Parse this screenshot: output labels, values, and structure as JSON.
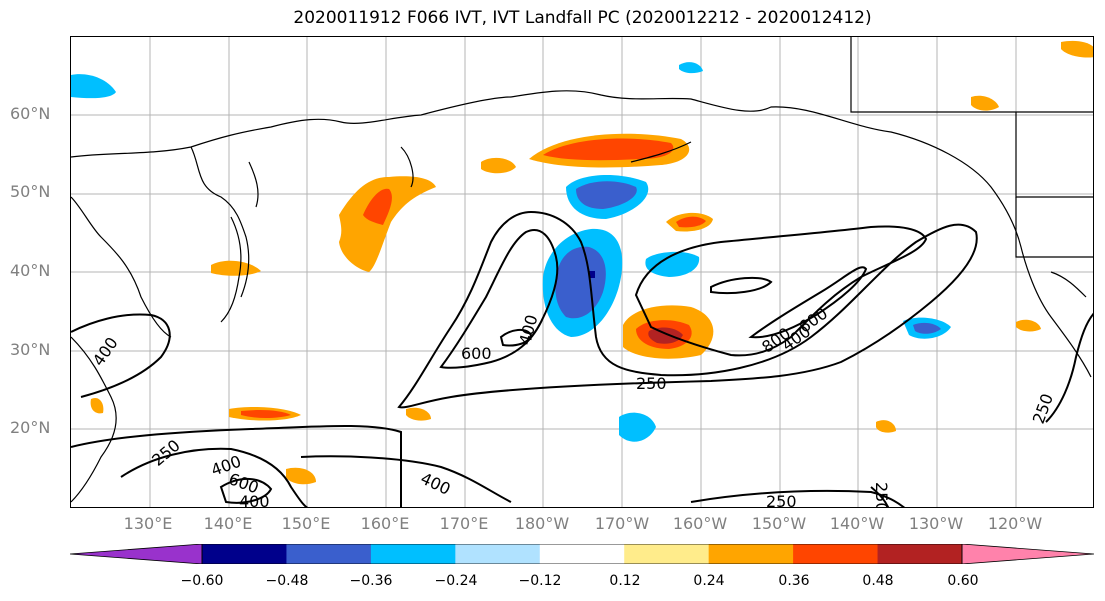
{
  "title": "2020011912 F066 IVT, IVT Landfall PC (2020012212 - 2020012412)",
  "lat_labels": [
    "60°N",
    "50°N",
    "40°N",
    "30°N",
    "20°N"
  ],
  "lon_labels": [
    "130°E",
    "140°E",
    "150°E",
    "160°E",
    "170°E",
    "180°W",
    "170°W",
    "160°W",
    "150°W",
    "140°W",
    "130°W",
    "120°W"
  ],
  "colorbar": {
    "colors": [
      "#9932cc",
      "#00008b",
      "#3a5fcd",
      "#00bfff",
      "#b0e2ff",
      "#ffffff",
      "#ffec8b",
      "#ffa500",
      "#ff4500",
      "#b22222",
      "#ff82ab"
    ],
    "ticks": [
      "−0.60",
      "−0.48",
      "−0.36",
      "−0.24",
      "−0.12",
      "0.12",
      "0.24",
      "0.36",
      "0.48",
      "0.60"
    ]
  },
  "contour_labels": [
    "600",
    "400",
    "250",
    "800",
    "600",
    "400",
    "400",
    "250",
    "400",
    "600",
    "400",
    "250",
    "400",
    "250",
    "250"
  ]
}
